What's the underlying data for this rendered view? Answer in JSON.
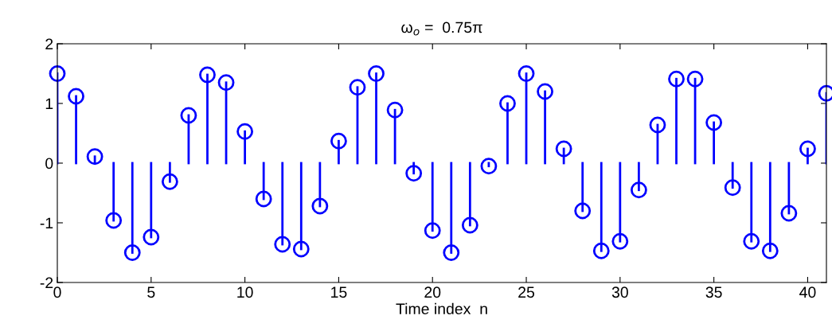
{
  "chart_data": {
    "type": "lollipop",
    "title": "ω$_{o}$ =  0.75π",
    "xlabel": "Time index  n",
    "x": [
      0,
      1,
      2,
      3,
      4,
      5,
      6,
      7,
      8,
      9,
      10,
      11,
      12,
      13,
      14,
      15,
      16,
      17,
      18,
      19,
      20,
      21,
      22,
      23,
      24,
      25,
      26,
      27,
      28,
      29,
      30,
      31,
      32,
      33,
      34,
      35,
      36,
      37,
      38,
      39,
      40,
      41
    ],
    "series": [
      {
        "color": "#0000ff",
        "values": [
          1.5,
          1.12,
          0.11,
          -0.96,
          -1.5,
          -1.24,
          -0.31,
          0.8,
          1.48,
          1.35,
          0.53,
          -0.6,
          -1.36,
          -1.44,
          -0.72,
          0.37,
          1.27,
          1.5,
          0.89,
          -0.17,
          -1.13,
          -1.5,
          -1.04,
          -0.05,
          1.0,
          1.5,
          1.2,
          0.24,
          -0.8,
          -1.47,
          -1.31,
          -0.45,
          0.64,
          1.41,
          1.41,
          0.68,
          -0.41,
          -1.31,
          -1.47,
          -0.84,
          0.24,
          1.17
        ]
      }
    ],
    "xlim": [
      0,
      41
    ],
    "xticks": [
      0,
      5,
      10,
      15,
      20,
      25,
      30,
      35,
      40
    ],
    "ylim": [
      -2,
      2
    ],
    "yticks": [
      -2,
      -1,
      0,
      1,
      2
    ],
    "marker": "circle",
    "line_style": "solid",
    "grid": false
  }
}
